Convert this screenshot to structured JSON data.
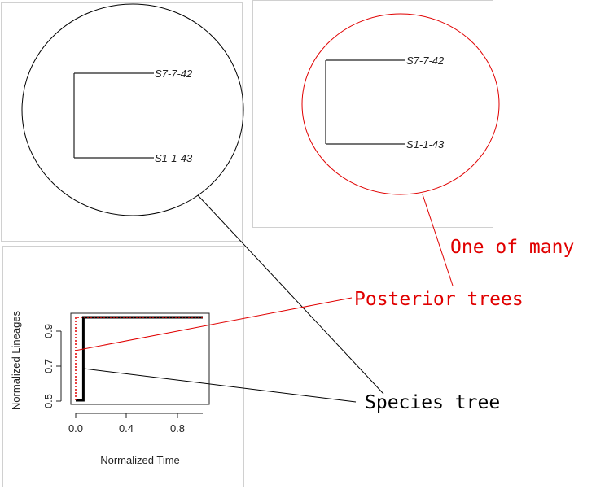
{
  "species_tree": {
    "tip_top": "S7-7-42",
    "tip_bottom": "S1-1-43"
  },
  "posterior_tree": {
    "tip_top": "S7-7-42",
    "tip_bottom": "S1-1-43"
  },
  "ltt_plot": {
    "xlabel": "Normalized Time",
    "ylabel": "Normalized Lineages",
    "x_ticks": [
      "0.0",
      "0.4",
      "0.8"
    ],
    "y_ticks": [
      "0.5",
      "0.7",
      "0.9"
    ]
  },
  "annotations": {
    "one_of_many": "One of many",
    "posterior_trees": "Posterior trees",
    "species_tree": "Species tree"
  },
  "colors": {
    "species": "#000000",
    "posterior": "#e00000",
    "panel_border": "#d0d0d0"
  },
  "chart_data": {
    "type": "line",
    "xlabel": "Normalized Time",
    "ylabel": "Normalized Lineages",
    "xlim": [
      0,
      1
    ],
    "ylim": [
      0.5,
      1.0
    ],
    "series": [
      {
        "x": [
          0.0,
          0.06,
          0.06,
          1.0
        ],
        "y": [
          0.5,
          0.5,
          1.0,
          1.0
        ]
      },
      {
        "x": [
          0.0,
          0.0,
          1.0
        ],
        "y": [
          0.5,
          1.0,
          1.0
        ]
      }
    ]
  }
}
